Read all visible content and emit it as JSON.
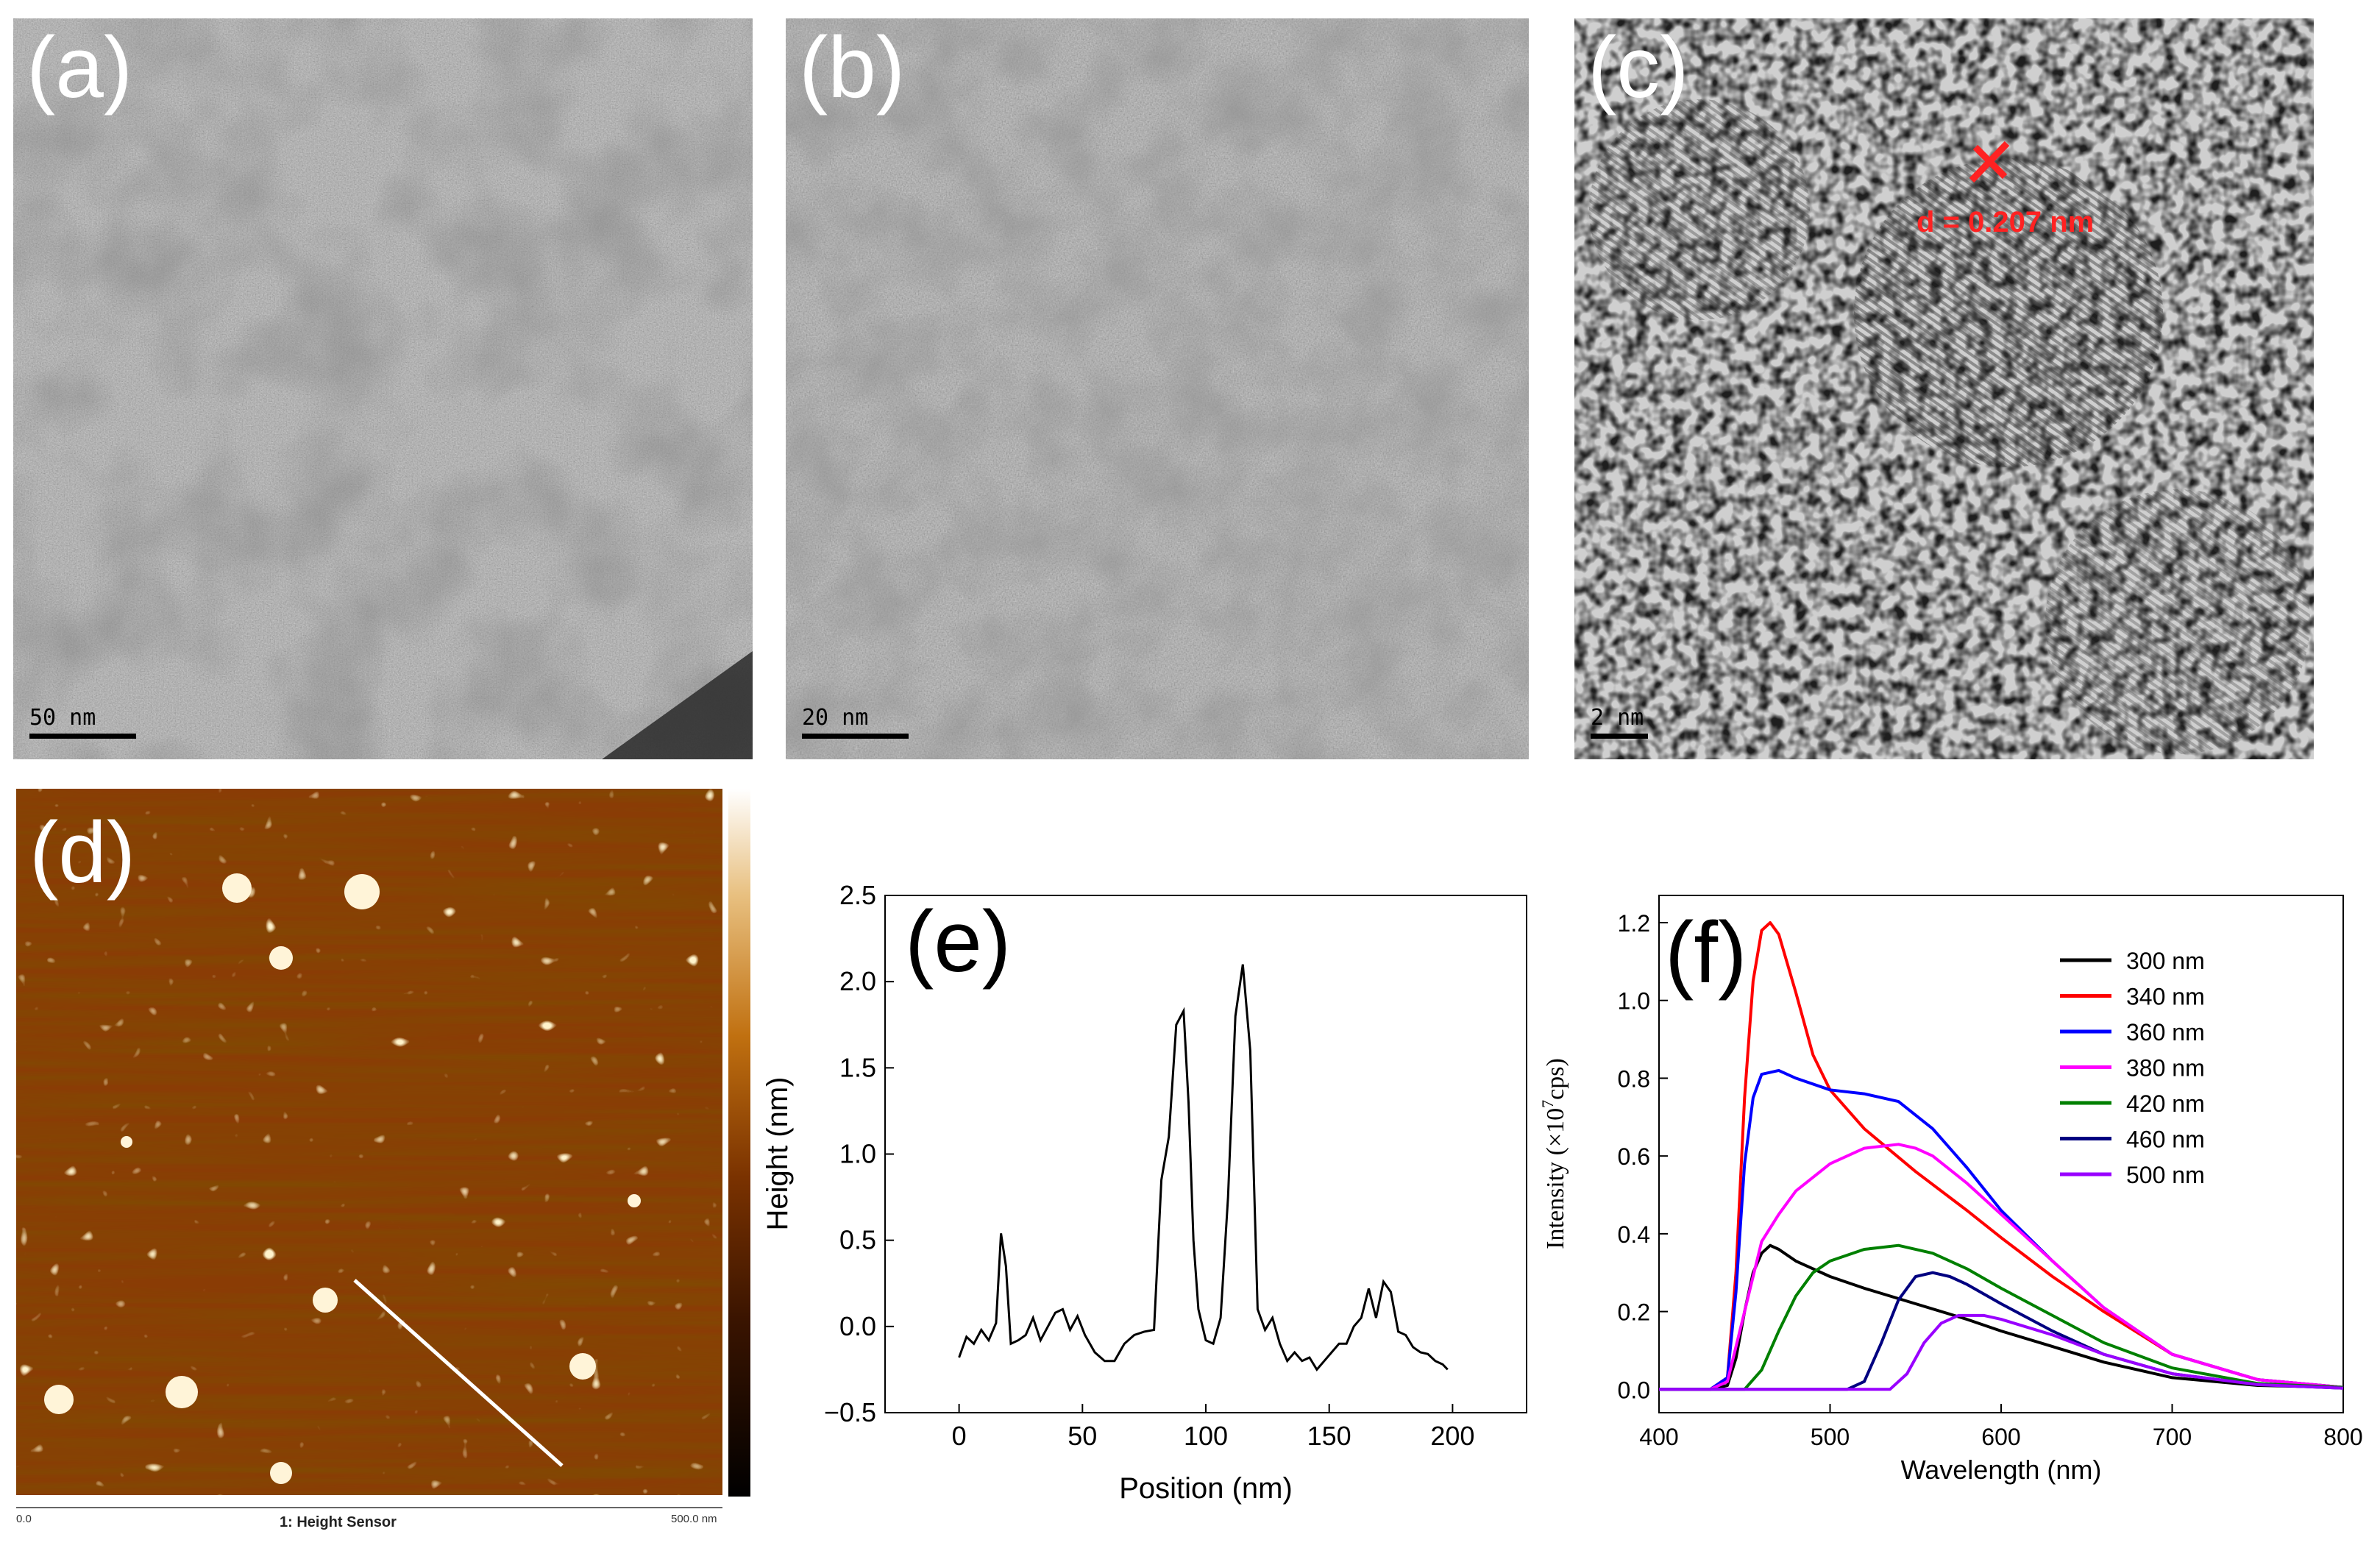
{
  "panels": {
    "a": {
      "label": "(a)",
      "scale": "50 nm"
    },
    "b": {
      "label": "(b)",
      "scale": "20 nm"
    },
    "c": {
      "label": "(c)",
      "scale": "2 nm",
      "annotation": "d = 0.207 nm"
    },
    "d": {
      "label": "(d)",
      "axis_left": "0.0",
      "axis_title": "1: Height Sensor",
      "axis_right": "500.0 nm"
    }
  },
  "chart_data": [
    {
      "type": "line",
      "panel_label": "(e)",
      "xlabel": "Position (nm)",
      "ylabel": "Height (nm)",
      "xlim": [
        -30,
        230
      ],
      "ylim": [
        -0.5,
        2.5
      ],
      "xticks": [
        0,
        50,
        100,
        150,
        200
      ],
      "yticks": [
        -0.5,
        0.0,
        0.5,
        1.0,
        1.5,
        2.0,
        2.5
      ],
      "ytick_labels": [
        "−0.5",
        "0.0",
        "0.5",
        "1.0",
        "1.5",
        "2.0",
        "2.5"
      ],
      "color": "#000000",
      "x": [
        0,
        3,
        6,
        9,
        12,
        15,
        17,
        19,
        21,
        24,
        27,
        30,
        33,
        36,
        39,
        42,
        45,
        48,
        51,
        55,
        59,
        63,
        67,
        71,
        75,
        79,
        82,
        85,
        88,
        91,
        93,
        95,
        97,
        100,
        103,
        106,
        109,
        112,
        115,
        118,
        121,
        124,
        127,
        130,
        133,
        136,
        139,
        142,
        145,
        148,
        151,
        154,
        157,
        160,
        163,
        166,
        169,
        172,
        175,
        178,
        181,
        184,
        187,
        190,
        193,
        196,
        198
      ],
      "y": [
        -0.18,
        -0.06,
        -0.1,
        -0.02,
        -0.08,
        0.02,
        0.54,
        0.35,
        -0.1,
        -0.08,
        -0.05,
        0.05,
        -0.08,
        0.0,
        0.08,
        0.1,
        -0.02,
        0.06,
        -0.05,
        -0.15,
        -0.2,
        -0.2,
        -0.1,
        -0.05,
        -0.03,
        -0.02,
        0.85,
        1.1,
        1.75,
        1.83,
        1.3,
        0.5,
        0.1,
        -0.08,
        -0.1,
        0.05,
        0.75,
        1.8,
        2.1,
        1.6,
        0.1,
        -0.02,
        0.05,
        -0.1,
        -0.2,
        -0.15,
        -0.2,
        -0.18,
        -0.25,
        -0.2,
        -0.15,
        -0.1,
        -0.1,
        0.0,
        0.05,
        0.22,
        0.05,
        0.26,
        0.2,
        -0.03,
        -0.05,
        -0.12,
        -0.15,
        -0.16,
        -0.2,
        -0.22,
        -0.25
      ]
    },
    {
      "type": "line",
      "panel_label": "(f)",
      "xlabel": "Wavelength (nm)",
      "ylabel_main": "Intensity (×10",
      "ylabel_sup": "7",
      "ylabel_tail": "cps)",
      "xlim": [
        400,
        800
      ],
      "ylim": [
        -0.06,
        1.27
      ],
      "xticks": [
        400,
        500,
        600,
        700,
        800
      ],
      "yticks": [
        0.0,
        0.2,
        0.4,
        0.6,
        0.8,
        1.0,
        1.2
      ],
      "ytick_labels": [
        "0.0",
        "0.2",
        "0.4",
        "0.6",
        "0.8",
        "1.0",
        "1.2"
      ],
      "legend_position": "top-right",
      "series": [
        {
          "name": "300 nm",
          "color": "#000000",
          "x": [
            400,
            430,
            440,
            445,
            450,
            455,
            460,
            465,
            470,
            480,
            490,
            500,
            520,
            550,
            580,
            600,
            630,
            660,
            700,
            750,
            800
          ],
          "y": [
            0,
            0,
            0.01,
            0.08,
            0.2,
            0.3,
            0.35,
            0.37,
            0.36,
            0.33,
            0.31,
            0.29,
            0.26,
            0.22,
            0.18,
            0.15,
            0.11,
            0.07,
            0.03,
            0.01,
            0.005
          ]
        },
        {
          "name": "340 nm",
          "color": "#ff0000",
          "x": [
            400,
            430,
            440,
            445,
            450,
            455,
            460,
            465,
            470,
            480,
            490,
            500,
            520,
            550,
            580,
            600,
            630,
            660,
            700,
            750,
            800
          ],
          "y": [
            0,
            0,
            0.03,
            0.3,
            0.75,
            1.05,
            1.18,
            1.2,
            1.17,
            1.02,
            0.86,
            0.77,
            0.67,
            0.56,
            0.46,
            0.39,
            0.29,
            0.2,
            0.09,
            0.025,
            0.005
          ]
        },
        {
          "name": "360 nm",
          "color": "#0000ff",
          "x": [
            400,
            430,
            440,
            445,
            450,
            455,
            460,
            470,
            480,
            500,
            520,
            540,
            560,
            580,
            600,
            630,
            660,
            700,
            750,
            800
          ],
          "y": [
            0,
            0,
            0.03,
            0.25,
            0.58,
            0.75,
            0.81,
            0.82,
            0.8,
            0.77,
            0.76,
            0.74,
            0.67,
            0.57,
            0.46,
            0.33,
            0.21,
            0.09,
            0.025,
            0.005
          ]
        },
        {
          "name": "380 nm",
          "color": "#ff00ff",
          "x": [
            400,
            430,
            440,
            450,
            460,
            470,
            480,
            500,
            520,
            540,
            550,
            560,
            580,
            600,
            630,
            660,
            700,
            750,
            800
          ],
          "y": [
            0,
            0,
            0.02,
            0.2,
            0.38,
            0.45,
            0.51,
            0.58,
            0.62,
            0.63,
            0.62,
            0.6,
            0.53,
            0.45,
            0.33,
            0.21,
            0.09,
            0.025,
            0.005
          ]
        },
        {
          "name": "420 nm",
          "color": "#008000",
          "x": [
            400,
            450,
            460,
            470,
            480,
            490,
            500,
            520,
            540,
            560,
            580,
            600,
            630,
            660,
            700,
            750,
            800
          ],
          "y": [
            0,
            0,
            0.05,
            0.15,
            0.24,
            0.3,
            0.33,
            0.36,
            0.37,
            0.35,
            0.31,
            0.26,
            0.19,
            0.12,
            0.055,
            0.015,
            0.005
          ]
        },
        {
          "name": "460 nm",
          "color": "#000080",
          "x": [
            400,
            510,
            520,
            530,
            540,
            550,
            560,
            570,
            580,
            600,
            630,
            660,
            700,
            750,
            800
          ],
          "y": [
            0,
            0,
            0.02,
            0.12,
            0.23,
            0.29,
            0.3,
            0.29,
            0.27,
            0.22,
            0.15,
            0.09,
            0.04,
            0.012,
            0.003
          ]
        },
        {
          "name": "500 nm",
          "color": "#9900ff",
          "x": [
            400,
            535,
            545,
            555,
            565,
            575,
            590,
            600,
            630,
            660,
            700,
            750,
            800
          ],
          "y": [
            0,
            0,
            0.04,
            0.12,
            0.17,
            0.19,
            0.19,
            0.18,
            0.14,
            0.09,
            0.04,
            0.012,
            0.003
          ]
        }
      ]
    }
  ]
}
